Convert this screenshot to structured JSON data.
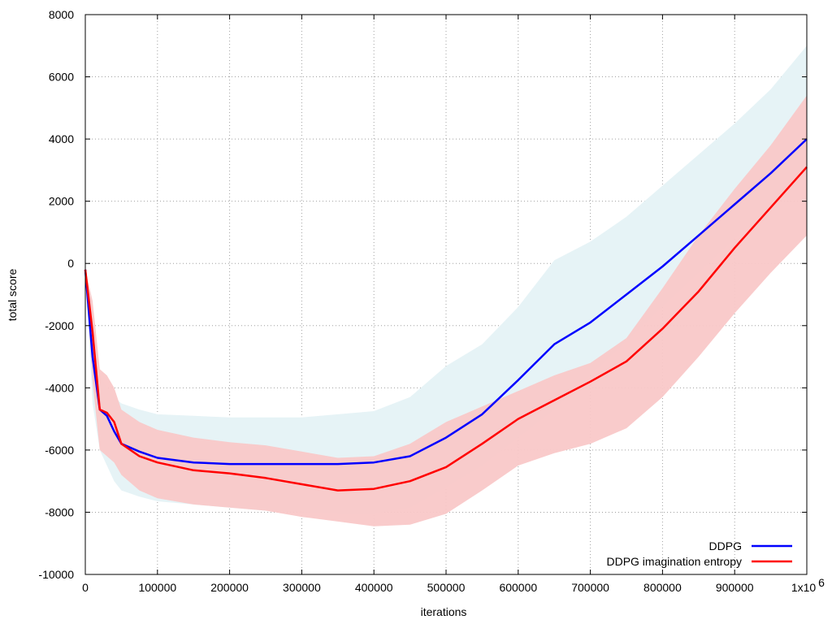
{
  "chart_data": {
    "type": "line",
    "title": "",
    "xlabel": "iterations",
    "ylabel": "total score",
    "xlim": [
      0,
      1000000
    ],
    "ylim": [
      -10000,
      8000
    ],
    "x_ticks": [
      0,
      100000,
      200000,
      300000,
      400000,
      500000,
      600000,
      700000,
      800000,
      900000,
      1000000
    ],
    "x_tick_labels": [
      "0",
      "100000",
      "200000",
      "300000",
      "400000",
      "500000",
      "600000",
      "700000",
      "800000",
      "900000",
      "1x10"
    ],
    "x_last_tick_exponent": "6",
    "y_ticks": [
      -10000,
      -8000,
      -6000,
      -4000,
      -2000,
      0,
      2000,
      4000,
      6000,
      8000
    ],
    "y_tick_labels": [
      "-10000",
      "-8000",
      "-6000",
      "-4000",
      "-2000",
      "0",
      "2000",
      "4000",
      "6000",
      "8000"
    ],
    "grid": true,
    "legend_position": "bottom-right",
    "x": [
      0,
      10000,
      20000,
      30000,
      40000,
      50000,
      75000,
      100000,
      150000,
      200000,
      250000,
      300000,
      350000,
      400000,
      450000,
      500000,
      550000,
      600000,
      650000,
      700000,
      750000,
      800000,
      850000,
      900000,
      950000,
      1000000
    ],
    "series": [
      {
        "name": "DDPG",
        "color": "#0000ff",
        "band_color": "#e6f3f6",
        "values": [
          -200,
          -3000,
          -4700,
          -4900,
          -5400,
          -5800,
          -6050,
          -6250,
          -6400,
          -6450,
          -6450,
          -6450,
          -6450,
          -6400,
          -6200,
          -5600,
          -4850,
          -3750,
          -2600,
          -1900,
          -1000,
          -100,
          900,
          1900,
          2900,
          4000
        ],
        "lower": [
          -200,
          -4500,
          -6000,
          -6500,
          -7000,
          -7300,
          -7500,
          -7650,
          -7750,
          -7850,
          -7950,
          -8000,
          -8050,
          -8050,
          -7850,
          -7200,
          -6500,
          -5600,
          -4700,
          -3600,
          -2500,
          -1400,
          -300,
          800,
          1800,
          3000
        ],
        "upper": [
          -200,
          -1800,
          -3600,
          -4000,
          -4300,
          -4500,
          -4700,
          -4850,
          -4900,
          -4950,
          -4950,
          -4950,
          -4850,
          -4750,
          -4300,
          -3300,
          -2600,
          -1400,
          100,
          700,
          1500,
          2500,
          3500,
          4500,
          5600,
          7000
        ]
      },
      {
        "name": "DDPG imagination entropy",
        "color": "#ff0000",
        "band_color": "#f9c8c8",
        "values": [
          -200,
          -2200,
          -4700,
          -4800,
          -5100,
          -5800,
          -6200,
          -6400,
          -6650,
          -6750,
          -6900,
          -7100,
          -7300,
          -7250,
          -7000,
          -6550,
          -5800,
          -5000,
          -4400,
          -3800,
          -3150,
          -2100,
          -900,
          500,
          1800,
          3100
        ],
        "lower": [
          -200,
          -3800,
          -6000,
          -6200,
          -6400,
          -6800,
          -7300,
          -7550,
          -7750,
          -7850,
          -7950,
          -8150,
          -8300,
          -8450,
          -8400,
          -8050,
          -7300,
          -6500,
          -6100,
          -5800,
          -5300,
          -4300,
          -3000,
          -1600,
          -300,
          900
        ],
        "upper": [
          -200,
          -1200,
          -3400,
          -3600,
          -4000,
          -4700,
          -5100,
          -5350,
          -5600,
          -5750,
          -5850,
          -6050,
          -6250,
          -6200,
          -5800,
          -5100,
          -4600,
          -4100,
          -3600,
          -3200,
          -2400,
          -800,
          900,
          2400,
          3800,
          5400
        ]
      }
    ]
  }
}
